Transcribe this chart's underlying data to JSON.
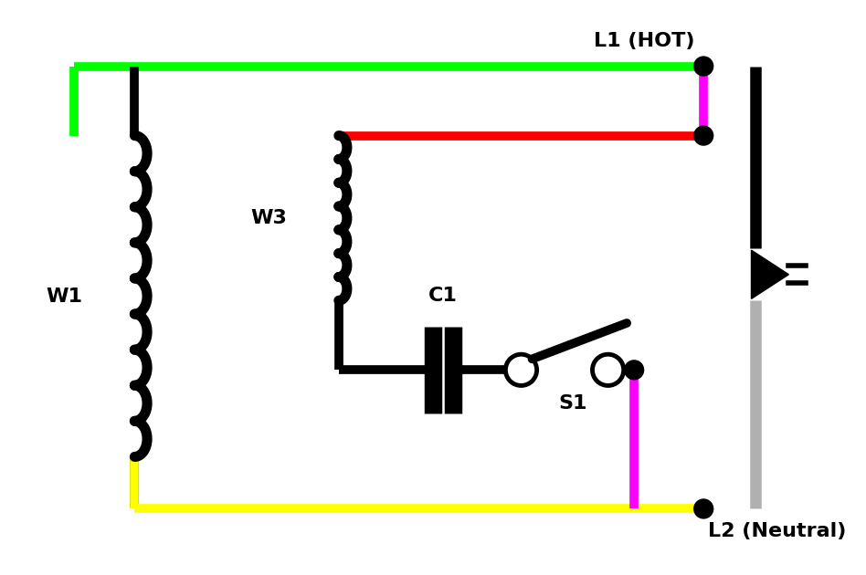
{
  "bg_color": "#ffffff",
  "line_color": "#000000",
  "green_color": "#00ff00",
  "yellow_color": "#ffff00",
  "magenta_color": "#ff00ff",
  "red_color": "#ff0000",
  "gray_color": "#b0b0b0",
  "lw_wire": 5,
  "lw_thick": 5,
  "label_W1": "W1",
  "label_W3": "W3",
  "label_C1": "C1",
  "label_S1": "S1",
  "label_L1": "L1 (HOT)",
  "label_L2": "L2 (Neutral)"
}
